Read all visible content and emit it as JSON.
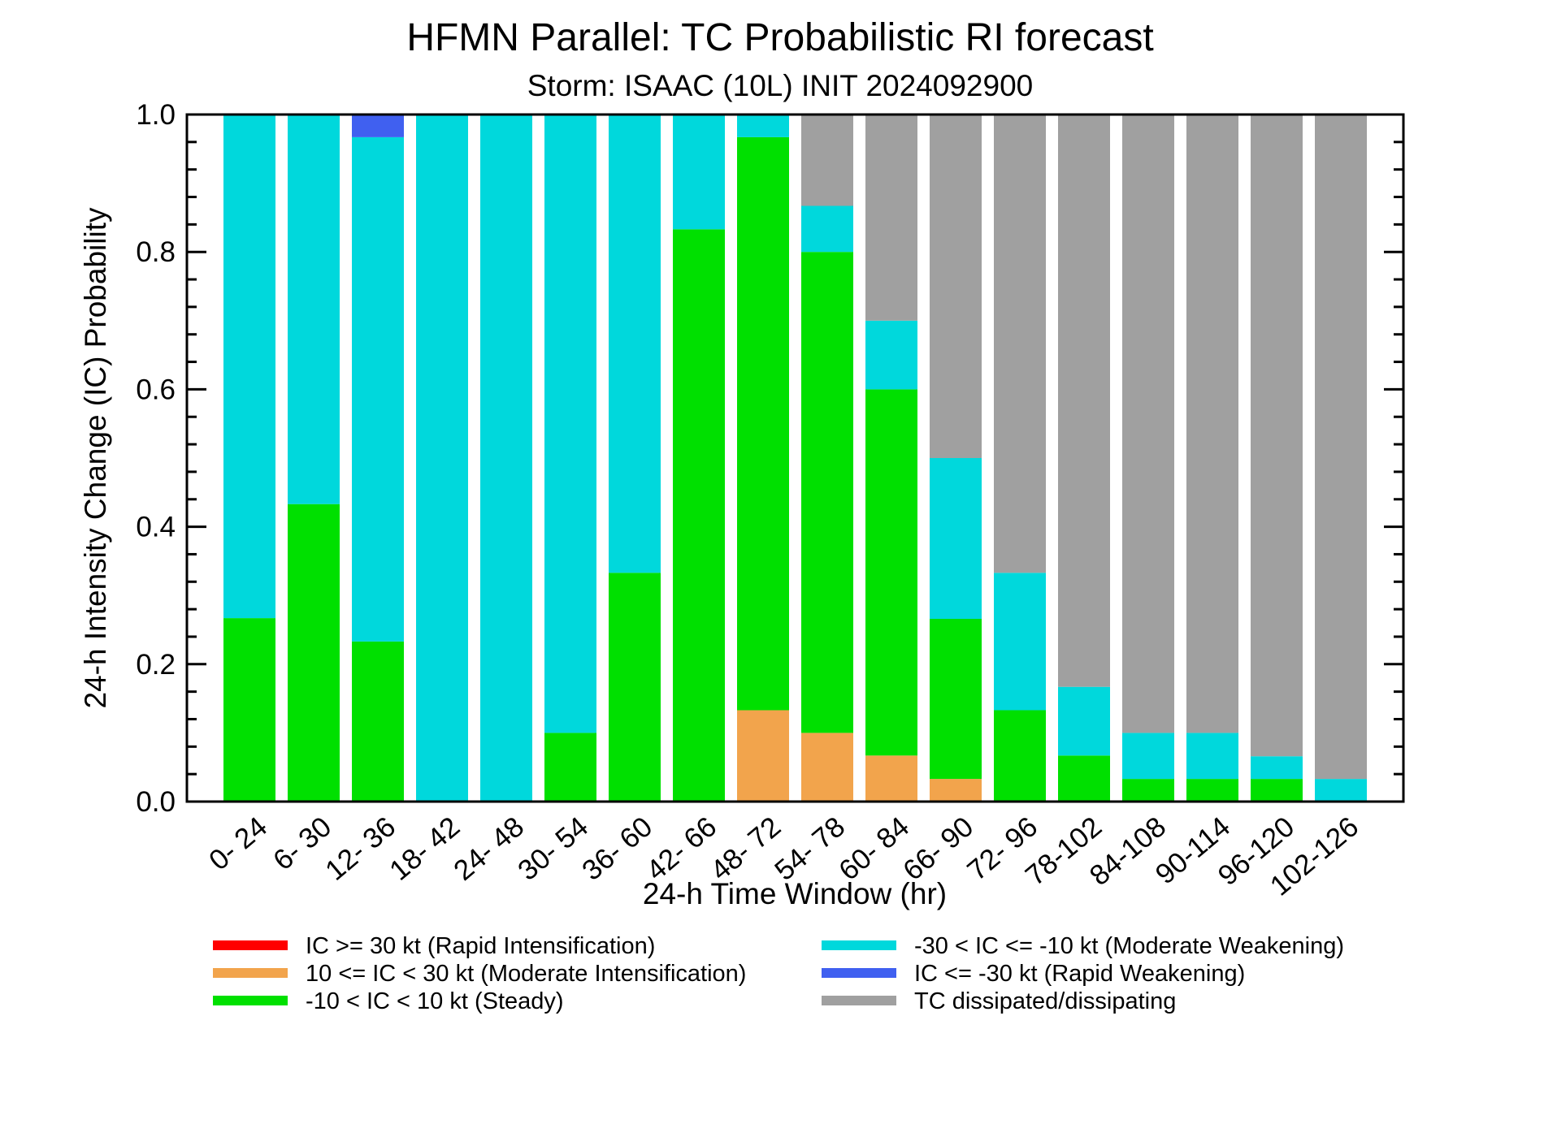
{
  "chart_data": {
    "type": "bar",
    "stacked": true,
    "title": "HFMN Parallel: TC Probabilistic RI forecast",
    "subtitle": "Storm: ISAAC (10L) INIT 2024092900",
    "xlabel": "24-h Time Window (hr)",
    "ylabel": "24-h Intensity Change (IC) Probability",
    "ylim": [
      0,
      1
    ],
    "yticks": [
      "0.0",
      "0.2",
      "0.4",
      "0.6",
      "0.8",
      "1.0"
    ],
    "grid": false,
    "legend_position": "bottom",
    "categories": [
      "0- 24",
      "6- 30",
      "12- 36",
      "18- 42",
      "24- 48",
      "30- 54",
      "36- 60",
      "42- 66",
      "48- 72",
      "54- 78",
      "60- 84",
      "66- 90",
      "72- 96",
      "78-102",
      "84-108",
      "90-114",
      "96-120",
      "102-126"
    ],
    "series": [
      {
        "name": "IC >= 30 kt (Rapid Intensification)",
        "color": "#ff0000",
        "values": [
          0,
          0,
          0,
          0,
          0,
          0,
          0,
          0,
          0,
          0,
          0,
          0,
          0,
          0,
          0,
          0,
          0,
          0
        ]
      },
      {
        "name": "10 <= IC < 30 kt (Moderate Intensification)",
        "color": "#f2a44c",
        "values": [
          0,
          0,
          0,
          0,
          0,
          0,
          0,
          0,
          0.133,
          0.1,
          0.067,
          0.033,
          0,
          0,
          0,
          0,
          0,
          0
        ]
      },
      {
        "name": "-10 < IC < 10 kt (Steady)",
        "color": "#00e000",
        "values": [
          0.267,
          0.433,
          0.233,
          0,
          0,
          0.1,
          0.333,
          0.833,
          0.834,
          0.7,
          0.533,
          0.233,
          0.133,
          0.067,
          0.033,
          0.033,
          0.033,
          0
        ]
      },
      {
        "name": "-30 < IC <= -10 kt (Moderate Weakening)",
        "color": "#00d8dc",
        "values": [
          0.733,
          0.567,
          0.734,
          1,
          1,
          0.9,
          0.667,
          0.167,
          0.033,
          0.067,
          0.1,
          0.234,
          0.2,
          0.1,
          0.067,
          0.067,
          0.033,
          0.033
        ]
      },
      {
        "name": "IC <= -30 kt (Rapid Weakening)",
        "color": "#4060f0",
        "values": [
          0,
          0,
          0.033,
          0,
          0,
          0,
          0,
          0,
          0,
          0,
          0,
          0,
          0,
          0,
          0,
          0,
          0,
          0
        ]
      },
      {
        "name": "TC dissipated/dissipating",
        "color": "#a0a0a0",
        "values": [
          0,
          0,
          0,
          0,
          0,
          0,
          0,
          0,
          0,
          0.133,
          0.3,
          0.5,
          0.667,
          0.833,
          0.9,
          0.9,
          0.934,
          0.967
        ]
      }
    ]
  }
}
